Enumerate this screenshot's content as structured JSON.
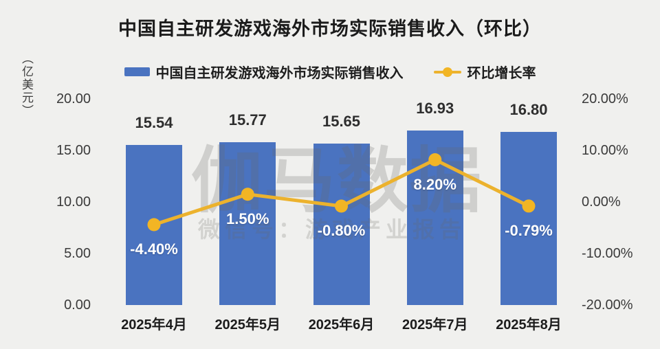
{
  "title": "中国自主研发游戏海外市场实际销售收入（环比）",
  "legend": {
    "bar_label": "中国自主研发游戏海外市场实际销售收入",
    "line_label": "环比增长率"
  },
  "watermark": {
    "line1": "伽马数据",
    "line2": "微信号：游戏产业报告"
  },
  "colors": {
    "bar": "#4a73c0",
    "line": "#ecb22d",
    "marker": "#f2b524",
    "background": "#f0f0ee"
  },
  "chart_data": {
    "type": "bar",
    "subtype": "combo-bar-line",
    "title": "中国自主研发游戏海外市场实际销售收入（环比）",
    "categories": [
      "2025年4月",
      "2025年5月",
      "2025年6月",
      "2025年7月",
      "2025年8月"
    ],
    "series": [
      {
        "name": "中国自主研发游戏海外市场实际销售收入",
        "type": "bar",
        "axis": "left",
        "values": [
          15.54,
          15.77,
          15.65,
          16.93,
          16.8
        ],
        "labels": [
          "15.54",
          "15.77",
          "15.65",
          "16.93",
          "16.80"
        ],
        "color": "#4a73c0"
      },
      {
        "name": "环比增长率",
        "type": "line",
        "axis": "right",
        "values": [
          -4.4,
          1.5,
          -0.8,
          8.2,
          -0.79
        ],
        "labels": [
          "-4.40%",
          "1.50%",
          "-0.80%",
          "8.20%",
          "-0.79%"
        ],
        "color": "#ecb22d"
      }
    ],
    "left_axis": {
      "unit": "（亿美元）",
      "ticks": [
        "20.00",
        "15.00",
        "10.00",
        "5.00",
        "0.00"
      ],
      "tick_values": [
        20,
        15,
        10,
        5,
        0
      ],
      "ylim": [
        0,
        20
      ]
    },
    "right_axis": {
      "ticks": [
        "20.00%",
        "10.00%",
        "0.00%",
        "-10.00%",
        "-20.00%"
      ],
      "tick_values": [
        20,
        10,
        0,
        -10,
        -20
      ],
      "ylim": [
        -20,
        20
      ]
    },
    "grid": false,
    "legend_position": "top"
  }
}
